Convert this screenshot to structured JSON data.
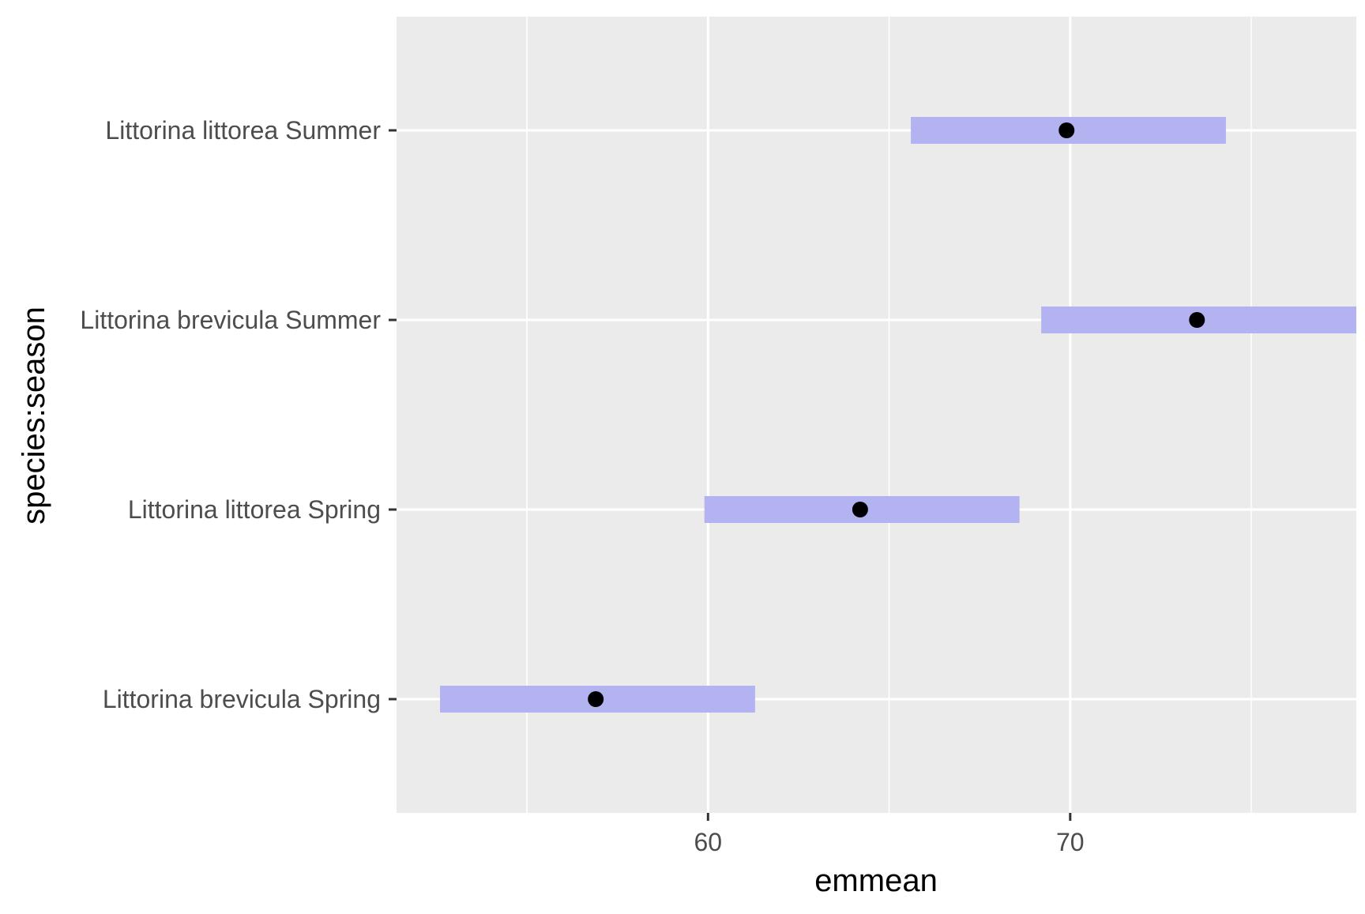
{
  "chart_data": {
    "type": "interval",
    "xlabel": "emmean",
    "ylabel": "species:season",
    "xlim": [
      51.4,
      77.9
    ],
    "x_ticks": [
      60,
      70
    ],
    "x_tick_labels": [
      "60",
      "70"
    ],
    "x_minor_ticks": [
      55,
      65,
      75
    ],
    "grid": true,
    "categories": [
      "Littorina brevicula Spring",
      "Littorina littorea Spring",
      "Littorina brevicula Summer",
      "Littorina littorea Summer"
    ],
    "emmean": [
      56.9,
      64.2,
      73.5,
      69.9
    ],
    "lower_CL": [
      52.6,
      59.9,
      69.2,
      65.6
    ],
    "upper_CL": [
      61.3,
      68.6,
      77.9,
      74.3
    ]
  },
  "colors": {
    "panel_background": "#ebebeb",
    "grid": "#ffffff",
    "interval": "#b3b3f2",
    "point": "#000000",
    "tick": "#333333"
  }
}
